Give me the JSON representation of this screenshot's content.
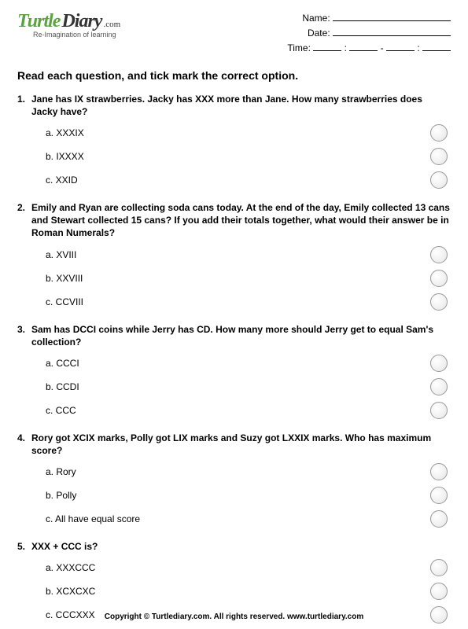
{
  "logo": {
    "word1": "Turtle",
    "word2": "Diary",
    "suffix": ".com",
    "tagline": "Re-Imagination of learning"
  },
  "meta": {
    "name_label": "Name:",
    "date_label": "Date:",
    "time_label": "Time:",
    "sep_colon": ":",
    "sep_dash": "-"
  },
  "instructions": "Read each question, and tick mark the correct option.",
  "questions": [
    {
      "num": "1.",
      "text": "Jane has IX strawberries. Jacky has XXX more than Jane. How many strawberries does Jacky have?",
      "opts": [
        "a. XXXIX",
        "b. IXXXX",
        "c. XXID"
      ]
    },
    {
      "num": "2.",
      "text": "Emily and Ryan are collecting soda cans today. At the end of the day, Emily collected 13 cans and Stewart collected 15 cans? If you add their totals together, what would their answer be in Roman Numerals?",
      "opts": [
        "a. XVIII",
        "b. XXVIII",
        "c. CCVIII"
      ]
    },
    {
      "num": "3.",
      "text": "Sam has DCCI coins while Jerry has CD. How many more should Jerry get to equal Sam's collection?",
      "opts": [
        "a. CCCI",
        "b. CCDI",
        "c. CCC"
      ]
    },
    {
      "num": "4.",
      "text": "Rory got XCIX marks, Polly got LIX marks and Suzy got LXXIX marks. Who has maximum score?",
      "opts": [
        "a. Rory",
        "b. Polly",
        "c. All have equal score"
      ]
    },
    {
      "num": "5.",
      "text": "XXX + CCC is?",
      "opts": [
        "a. XXXCCC",
        "b. XCXCXC",
        "c. CCCXXX"
      ]
    }
  ],
  "footer": "Copyright © Turtlediary.com. All rights reserved. www.turtlediary.com"
}
